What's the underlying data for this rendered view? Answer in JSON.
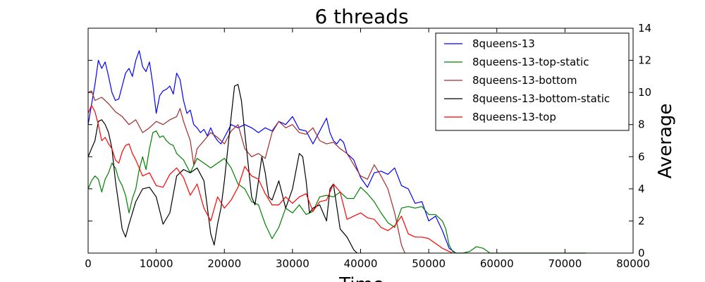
{
  "chart_data": {
    "type": "line",
    "title": "6 threads",
    "xlabel": "Time",
    "ylabel": "Average",
    "xlim": [
      0,
      80000
    ],
    "ylim": [
      0,
      14
    ],
    "xticks": [
      "0",
      "10000",
      "20000",
      "30000",
      "40000",
      "50000",
      "60000",
      "70000",
      "80000"
    ],
    "yticks": [
      "0",
      "2",
      "4",
      "6",
      "8",
      "10",
      "12",
      "14"
    ],
    "y_axis_side": "right",
    "legend_position": "top-right",
    "grid": false,
    "series": [
      {
        "name": "8queens-13",
        "color": "#0000ff",
        "x": [
          0,
          1000,
          1500,
          2000,
          2500,
          3000,
          3500,
          4000,
          4500,
          5000,
          5500,
          6000,
          6500,
          7000,
          7500,
          8000,
          8500,
          9000,
          9500,
          10000,
          10500,
          11000,
          11500,
          12000,
          12500,
          13000,
          13500,
          14000,
          14500,
          15000,
          15500,
          16000,
          16500,
          17000,
          17500,
          18000,
          18500,
          19000,
          19500,
          20000,
          21000,
          22000,
          23000,
          24000,
          25000,
          26000,
          27000,
          28000,
          29000,
          30000,
          31000,
          32000,
          33000,
          34000,
          35000,
          35500,
          36000,
          36500,
          37000,
          37500,
          38000,
          39000,
          40000,
          41000,
          42000,
          43000,
          44000,
          45000,
          46000,
          47000,
          48000,
          49000,
          50000,
          51000,
          52000,
          53000,
          54000
        ],
        "y": [
          8.0,
          10.5,
          12.0,
          11.5,
          11.9,
          11.0,
          10.0,
          9.5,
          9.6,
          10.4,
          11.2,
          11.5,
          11.0,
          12.0,
          12.6,
          11.6,
          11.3,
          11.9,
          10.5,
          8.7,
          9.8,
          10.1,
          10.2,
          10.4,
          9.9,
          11.2,
          10.8,
          9.5,
          8.7,
          8.9,
          8.0,
          7.8,
          7.5,
          7.7,
          7.3,
          7.8,
          7.3,
          7.0,
          6.8,
          7.2,
          8.0,
          7.8,
          8.0,
          7.8,
          7.5,
          7.8,
          7.6,
          8.2,
          8.0,
          8.5,
          7.7,
          7.6,
          6.8,
          7.6,
          8.4,
          7.5,
          7.0,
          6.8,
          7.1,
          6.9,
          6.2,
          5.8,
          4.7,
          4.1,
          5.0,
          5.1,
          4.9,
          5.3,
          4.2,
          4.0,
          3.1,
          3.2,
          2.0,
          2.3,
          1.4,
          0.3,
          0.0
        ]
      },
      {
        "name": "8queens-13-top-static",
        "color": "#008000",
        "x": [
          0,
          500,
          1000,
          1500,
          2000,
          2500,
          3000,
          3500,
          4000,
          4500,
          5000,
          5500,
          6000,
          6500,
          7000,
          7500,
          8000,
          8500,
          9000,
          9500,
          10000,
          10500,
          11000,
          11500,
          12000,
          12500,
          13000,
          13500,
          14000,
          15000,
          16000,
          17000,
          18000,
          19000,
          20000,
          21000,
          22000,
          23000,
          24000,
          25000,
          26000,
          27000,
          28000,
          29000,
          30000,
          31000,
          32000,
          33000,
          34000,
          35000,
          36000,
          37000,
          38000,
          39000,
          40000,
          41000,
          42000,
          43000,
          44000,
          45000,
          46000,
          47000,
          48000,
          49000,
          50000,
          51000,
          52000,
          52500,
          53000,
          53500,
          54000,
          55000,
          56000,
          57000,
          58000,
          59000,
          60000,
          61000,
          65000,
          70000,
          73000
        ],
        "y": [
          4.0,
          4.5,
          4.8,
          4.6,
          3.8,
          4.6,
          5.0,
          5.6,
          5.3,
          4.6,
          4.2,
          3.6,
          2.5,
          3.4,
          4.0,
          5.2,
          6.0,
          5.2,
          6.5,
          7.5,
          7.6,
          7.2,
          7.3,
          7.0,
          6.8,
          6.7,
          6.2,
          6.0,
          5.8,
          5.0,
          5.9,
          5.6,
          5.3,
          5.6,
          5.9,
          5.3,
          4.3,
          4.0,
          3.2,
          3.0,
          1.8,
          0.9,
          1.6,
          2.8,
          2.5,
          3.0,
          2.4,
          2.6,
          3.5,
          3.6,
          3.5,
          3.8,
          3.4,
          3.4,
          4.1,
          3.7,
          3.2,
          2.5,
          1.9,
          1.6,
          2.8,
          2.9,
          2.8,
          2.9,
          2.4,
          2.4,
          2.0,
          1.5,
          0.5,
          0.1,
          0.0,
          0.0,
          0.1,
          0.4,
          0.3,
          0.0,
          0.0,
          0.0,
          0.0,
          0.0,
          0.0
        ]
      },
      {
        "name": "8queens-13-bottom",
        "color": "#a52a2a",
        "x": [
          0,
          500,
          1000,
          2000,
          3000,
          4000,
          5000,
          6000,
          7000,
          8000,
          9000,
          10000,
          11000,
          12000,
          13000,
          13500,
          14000,
          15000,
          15500,
          16000,
          17000,
          18000,
          19000,
          20000,
          21000,
          22000,
          23000,
          24000,
          25000,
          26000,
          27000,
          28000,
          29000,
          30000,
          31000,
          32000,
          33000,
          34000,
          35000,
          36000,
          37000,
          38000,
          39000,
          40000,
          41000,
          42000,
          43000,
          44000,
          45000,
          46000,
          46500
        ],
        "y": [
          10.0,
          10.1,
          9.5,
          9.7,
          9.3,
          8.8,
          8.5,
          8.0,
          8.3,
          7.5,
          7.8,
          8.2,
          8.0,
          8.3,
          8.5,
          9.0,
          8.2,
          7.0,
          5.5,
          6.5,
          7.0,
          7.5,
          7.2,
          6.8,
          7.6,
          8.0,
          6.5,
          6.0,
          6.2,
          5.9,
          7.5,
          8.2,
          7.8,
          8.0,
          7.5,
          7.4,
          7.8,
          7.0,
          6.8,
          6.9,
          6.5,
          6.2,
          5.5,
          4.8,
          4.6,
          5.5,
          4.8,
          4.0,
          2.5,
          0.5,
          0.0
        ]
      },
      {
        "name": "8queens-13-bottom-static",
        "color": "#000000",
        "x": [
          0,
          500,
          1000,
          1500,
          2000,
          2500,
          3000,
          3500,
          4000,
          4500,
          5000,
          5500,
          6000,
          7000,
          8000,
          9000,
          10000,
          11000,
          12000,
          13000,
          14000,
          15000,
          16000,
          17000,
          18000,
          18500,
          19000,
          19500,
          20000,
          20500,
          21000,
          21500,
          22000,
          22500,
          23000,
          23500,
          24000,
          24500,
          25000,
          25500,
          26000,
          26500,
          27000,
          28000,
          29000,
          30000,
          31000,
          31500,
          32000,
          32500,
          33000,
          34000,
          35000,
          35500,
          36000,
          37000,
          38000,
          39000,
          39500
        ],
        "y": [
          6.0,
          6.5,
          7.0,
          8.2,
          8.3,
          8.0,
          7.5,
          6.5,
          4.5,
          3.0,
          1.5,
          1.0,
          1.8,
          3.2,
          4.0,
          4.1,
          3.5,
          1.8,
          2.5,
          4.8,
          5.2,
          5.0,
          5.3,
          4.5,
          1.2,
          0.5,
          1.8,
          2.8,
          4.5,
          6.5,
          8.5,
          10.4,
          10.5,
          9.5,
          7.5,
          5.5,
          3.5,
          3.0,
          4.5,
          6.0,
          5.0,
          3.5,
          3.3,
          4.5,
          2.8,
          4.0,
          6.2,
          6.0,
          4.5,
          2.5,
          2.8,
          3.0,
          2.0,
          4.0,
          4.3,
          1.5,
          1.0,
          0.2,
          0.0
        ]
      },
      {
        "name": "8queens-13-top",
        "color": "#ff0000",
        "x": [
          0,
          500,
          1000,
          1500,
          2000,
          2500,
          3000,
          3500,
          4000,
          4500,
          5000,
          5500,
          6000,
          6500,
          7000,
          8000,
          9000,
          10000,
          11000,
          12000,
          13000,
          14000,
          15000,
          16000,
          17000,
          18000,
          19000,
          20000,
          21000,
          22000,
          23000,
          24000,
          25000,
          26000,
          27000,
          28000,
          29000,
          30000,
          31000,
          32000,
          33000,
          34000,
          35000,
          36000,
          37000,
          38000,
          39000,
          40000,
          41000,
          42000,
          43000,
          44000,
          45000,
          46000,
          47000,
          48000,
          49000,
          50000,
          51000,
          52000,
          53000,
          53500
        ],
        "y": [
          8.7,
          9.2,
          8.8,
          8.0,
          7.0,
          7.2,
          6.8,
          6.5,
          5.8,
          5.6,
          6.3,
          6.7,
          6.8,
          6.2,
          5.8,
          4.8,
          5.0,
          4.2,
          4.1,
          4.9,
          5.3,
          4.7,
          3.6,
          4.3,
          2.8,
          2.0,
          3.5,
          2.8,
          3.3,
          4.1,
          5.4,
          4.8,
          4.6,
          3.7,
          3.0,
          3.0,
          3.5,
          3.1,
          3.5,
          3.7,
          2.6,
          3.2,
          3.3,
          4.3,
          3.8,
          2.1,
          2.3,
          2.5,
          2.2,
          2.1,
          1.6,
          1.4,
          1.7,
          2.3,
          1.2,
          1.0,
          1.0,
          0.9,
          0.6,
          0.3,
          0.1,
          0.0
        ]
      }
    ]
  }
}
